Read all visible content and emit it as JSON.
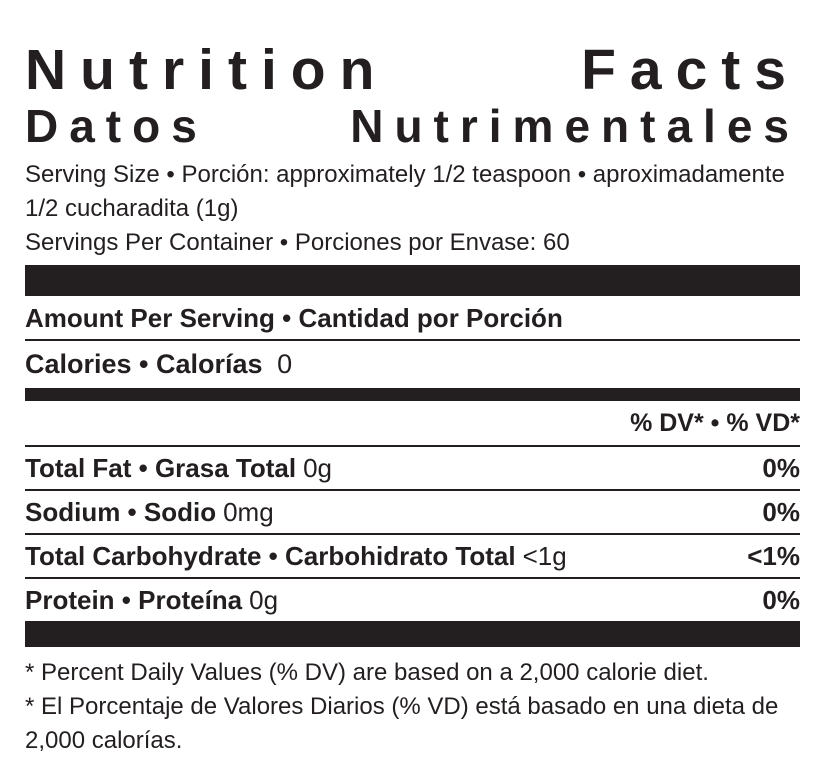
{
  "label": {
    "title_en": "Nutrition Facts",
    "title_es": "Datos Nutrimentales",
    "serving_size": "Serving Size • Porción: approximately 1/2 teaspoon • aproximadamente 1/2 cucharadita (1g)",
    "servings_per_container": "Servings Per Container • Porciones por Envase: 60",
    "amount_per_serving": "Amount Per Serving • Cantidad por Porción",
    "calories": {
      "name": "Calories • Calorías",
      "value": "0"
    },
    "dv_header": "% DV* • % VD*",
    "nutrients": [
      {
        "name": "Total Fat • Grasa Total",
        "amount": "0g",
        "dv": "0%"
      },
      {
        "name": "Sodium • Sodio",
        "amount": "0mg",
        "dv": "0%"
      },
      {
        "name": "Total Carbohydrate • Carbohidrato Total",
        "amount": "<1g",
        "dv": "<1%"
      },
      {
        "name": "Protein • Proteína",
        "amount": "0g",
        "dv": "0%"
      }
    ],
    "footnotes": [
      "* Percent Daily Values (% DV) are based on a 2,000 calorie diet.",
      "* El Porcentaje de Valores Diarios (% VD) está basado en una dieta de 2,000 calorías."
    ],
    "colors": {
      "ink": "#231f20",
      "bar": "#231f20",
      "background": "#ffffff"
    }
  }
}
